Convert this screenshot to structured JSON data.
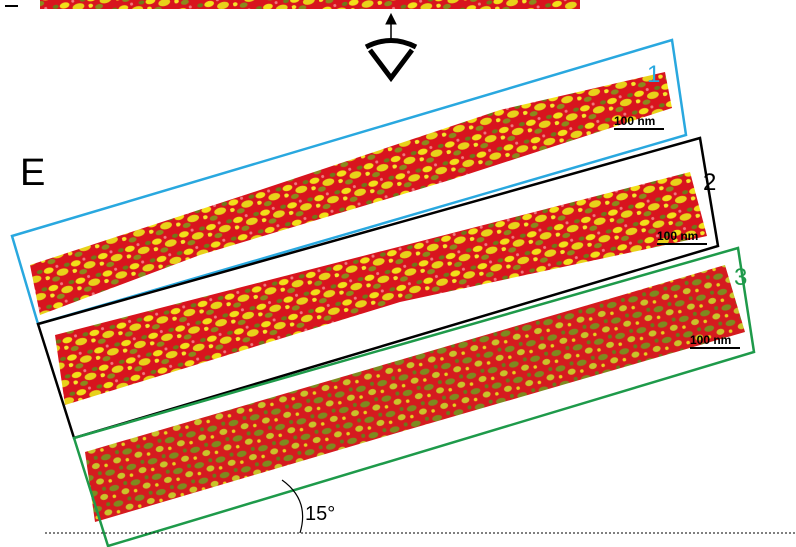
{
  "panel": {
    "label": "E"
  },
  "boxes": [
    {
      "label": "1",
      "scale_bar": "100 nm"
    },
    {
      "label": "2",
      "scale_bar": "100 nm"
    },
    {
      "label": "3",
      "scale_bar": "100 nm"
    }
  ],
  "angle": {
    "label": "15°"
  }
}
